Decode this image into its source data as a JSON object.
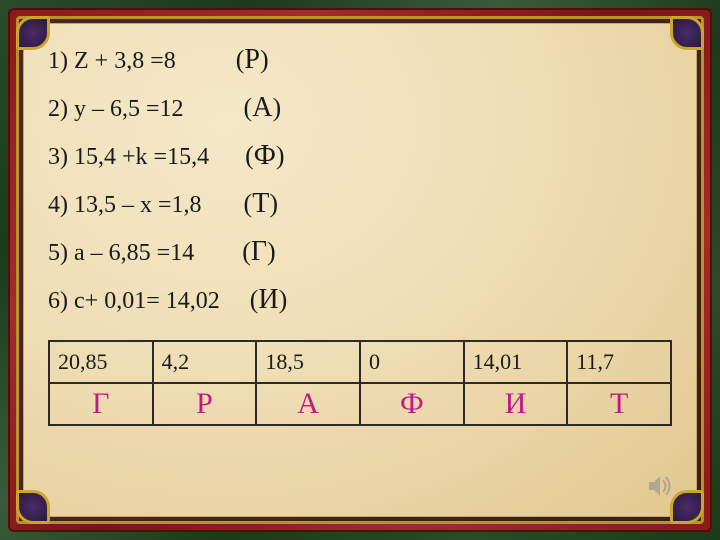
{
  "equations": [
    {
      "num": "1)",
      "expr": "Z + 3,8 =8",
      "spacer": "          ",
      "letter_open": "(",
      "letter": "Р",
      "letter_close": ")"
    },
    {
      "num": "2)",
      "expr": "у – 6,5 =12",
      "spacer": "          ",
      "letter_open": "(",
      "letter": "А",
      "letter_close": ")"
    },
    {
      "num": "3)",
      "expr": "15,4 +k =15,4",
      "spacer": "      ",
      "letter_open": "(",
      "letter": "Ф",
      "letter_close": ")"
    },
    {
      "num": "4)",
      "expr": "13,5 – х =1,8",
      "spacer": "       ",
      "letter_open": "(",
      "letter": "Т",
      "letter_close": ")"
    },
    {
      "num": "5)",
      "expr": "а – 6,85 =14",
      "spacer": "        ",
      "letter_open": "(",
      "letter": "Г",
      "letter_close": ")"
    },
    {
      "num": "6)",
      "expr": "с+ 0,01= 14,02",
      "spacer": "     ",
      "letter_open": "(",
      "letter": "И",
      "letter_close": ")"
    }
  ],
  "table": {
    "numbers": [
      "20,85",
      "4,2",
      "18,5",
      "0",
      "14,01",
      "11,7"
    ],
    "letters": [
      "Г",
      "Р",
      "А",
      "Ф",
      "И",
      "Т"
    ],
    "letter_color": "#c01a8a",
    "border_color": "#2a2a2a",
    "number_fontsize": 22,
    "letter_fontsize": 30
  },
  "styling": {
    "parchment_bg": "#f0dfb8",
    "frame_green": "#1a3a1a",
    "frame_red": "#8a1a1a",
    "frame_gold": "#b8922a",
    "text_color": "#1a1a1a",
    "equation_fontsize": 24,
    "letter_fontsize": 28,
    "font_family": "Times New Roman"
  },
  "icons": {
    "sound": "sound-icon"
  }
}
